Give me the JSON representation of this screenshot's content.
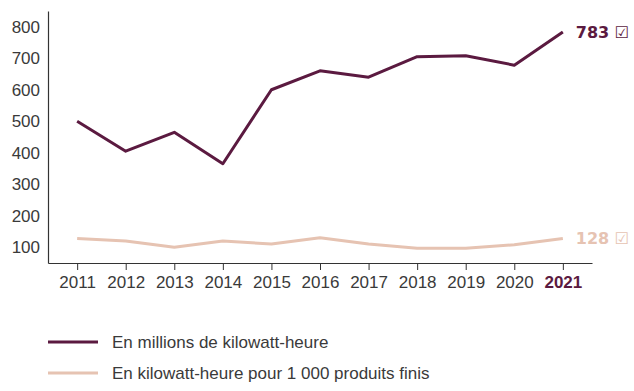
{
  "chart_data": {
    "type": "line",
    "categories": [
      "2011",
      "2012",
      "2013",
      "2014",
      "2015",
      "2016",
      "2017",
      "2018",
      "2019",
      "2020",
      "2021"
    ],
    "series": [
      {
        "name": "En millions de kilowatt-heure",
        "color": "#5b1a40",
        "values": [
          500,
          405,
          465,
          365,
          600,
          660,
          640,
          705,
          708,
          678,
          783
        ],
        "value_labels": [
          null,
          null,
          null,
          null,
          null,
          null,
          null,
          null,
          null,
          null,
          "783 ☑"
        ]
      },
      {
        "name": "En kilowatt-heure pour 1 000 produits finis",
        "color": "#e6c3b2",
        "values": [
          128,
          120,
          100,
          120,
          110,
          130,
          110,
          97,
          97,
          108,
          128
        ],
        "value_labels": [
          null,
          null,
          null,
          null,
          null,
          null,
          null,
          null,
          null,
          null,
          "128 ☑"
        ]
      }
    ],
    "ylim": [
      50,
      850
    ],
    "yticks": [
      100,
      200,
      300,
      400,
      500,
      600,
      700,
      800
    ],
    "grid": false,
    "legend": "bottom"
  }
}
